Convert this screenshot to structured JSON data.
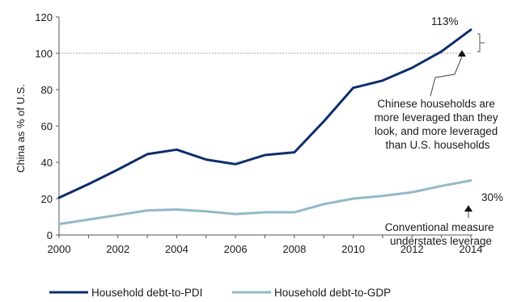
{
  "chart_data": {
    "type": "line",
    "x": [
      2000,
      2001,
      2002,
      2003,
      2004,
      2005,
      2006,
      2007,
      2008,
      2009,
      2010,
      2011,
      2012,
      2013,
      2014
    ],
    "series": [
      {
        "name": "Household debt-to-PDI",
        "color": "#0d2e6b",
        "values": [
          20.5,
          28,
          36,
          44.5,
          47,
          41.5,
          39,
          44,
          45.5,
          62.5,
          81,
          85,
          92,
          101,
          113
        ]
      },
      {
        "name": "Household debt-to-GDP",
        "color": "#93b9c9",
        "values": [
          6,
          8.5,
          11,
          13.5,
          14,
          13,
          11.5,
          12.5,
          12.5,
          17,
          20,
          21.5,
          23.5,
          27,
          30
        ]
      }
    ],
    "ylabel": "China as % of U.S.",
    "xlabel": "",
    "ylim": [
      0,
      120
    ],
    "yticks": [
      0,
      20,
      40,
      60,
      80,
      100,
      120
    ],
    "xticks": [
      2000,
      2002,
      2004,
      2006,
      2008,
      2010,
      2012,
      2014
    ],
    "reference_line": {
      "y": 100,
      "style": "dotted"
    },
    "grid": false,
    "legend_position": "bottom",
    "end_labels": [
      "113%",
      "30%"
    ],
    "annotations": {
      "top": [
        "Chinese households are",
        "more leveraged than they",
        "look, and more leveraged",
        "than U.S. households"
      ],
      "bottom": [
        "Conventional measure",
        "understates leverage"
      ]
    }
  }
}
